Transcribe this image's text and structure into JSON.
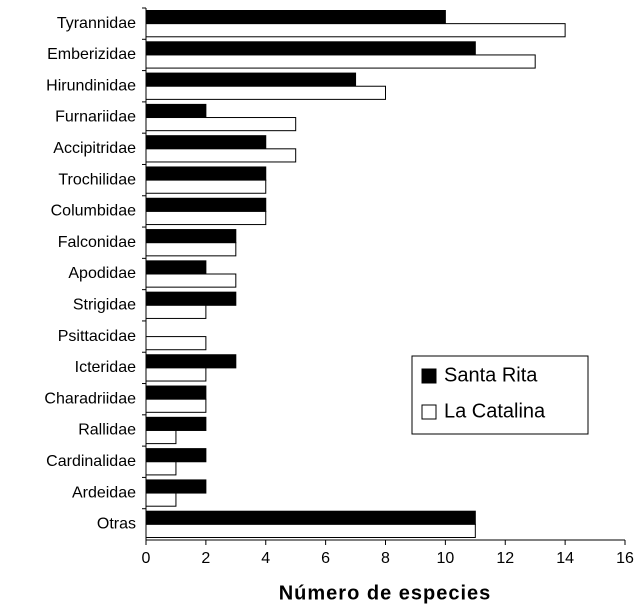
{
  "chart_data": {
    "type": "barh",
    "xlabel": "Número de especies",
    "categories": [
      "Tyrannidae",
      "Emberizidae",
      "Hirundinidae",
      "Furnariidae",
      "Accipitridae",
      "Trochilidae",
      "Columbidae",
      "Falconidae",
      "Apodidae",
      "Strigidae",
      "Psittacidae",
      "Icteridae",
      "Charadriidae",
      "Rallidae",
      "Cardinalidae",
      "Ardeidae",
      "Otras"
    ],
    "series": [
      {
        "name": "Santa Rita",
        "color": "#000000",
        "values": [
          10,
          11,
          7,
          2,
          4,
          4,
          4,
          3,
          2,
          3,
          0,
          3,
          2,
          2,
          2,
          2,
          11
        ]
      },
      {
        "name": "La Catalina",
        "color": "#ffffff",
        "values": [
          14,
          13,
          8,
          5,
          5,
          4,
          4,
          3,
          3,
          2,
          2,
          2,
          2,
          1,
          1,
          1,
          11
        ]
      }
    ],
    "xlim": [
      0,
      16
    ],
    "xticks": [
      0,
      2,
      4,
      6,
      8,
      10,
      12,
      14,
      16
    ],
    "grid": false
  }
}
